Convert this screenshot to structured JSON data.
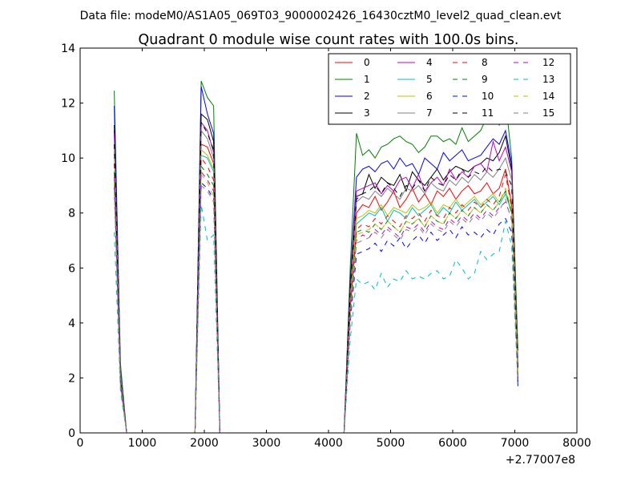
{
  "suptitle": "Data file: modeM0/AS1A05_069T03_9000002426_16430cztM0_level2_quad_clean.evt",
  "chart_data": {
    "type": "line",
    "title": "Quadrant 0 module wise count rates with 100.0s bins.",
    "xlabel": "",
    "ylabel": "",
    "x_offset_label": "+2.77007e8",
    "xlim": [
      0,
      8000
    ],
    "ylim": [
      0,
      14
    ],
    "xticks": [
      0,
      1000,
      2000,
      3000,
      4000,
      5000,
      6000,
      7000,
      8000
    ],
    "yticks": [
      0,
      2,
      4,
      6,
      8,
      10,
      12,
      14
    ],
    "grid": false,
    "legend_position": "top-right",
    "x": [
      550,
      650,
      750,
      850,
      950,
      1050,
      1150,
      1250,
      1350,
      1450,
      1550,
      1650,
      1750,
      1850,
      1950,
      2050,
      2150,
      2250,
      2350,
      2450,
      2550,
      2650,
      2750,
      2850,
      2950,
      3050,
      3150,
      3250,
      3350,
      3450,
      3550,
      3650,
      3750,
      3850,
      3950,
      4050,
      4150,
      4250,
      4350,
      4450,
      4550,
      4650,
      4750,
      4850,
      4950,
      5050,
      5150,
      5250,
      5350,
      5450,
      5550,
      5650,
      5750,
      5850,
      5950,
      6050,
      6150,
      6250,
      6350,
      6450,
      6550,
      6650,
      6750,
      6850,
      6950,
      7050
    ],
    "series": [
      {
        "name": "0",
        "color": "#ff0000",
        "dash": false,
        "values": [
          11.0,
          2.0,
          0,
          0,
          0,
          0,
          0,
          0,
          0,
          0,
          0,
          0,
          0,
          0,
          10.5,
          10.4,
          9.8,
          0,
          0,
          0,
          0,
          0,
          0,
          0,
          0,
          0,
          0,
          0,
          0,
          0,
          0,
          0,
          0,
          0,
          0,
          0,
          0,
          0,
          4.8,
          8.0,
          8.3,
          8.2,
          8.6,
          8.1,
          8.4,
          8.8,
          8.2,
          8.5,
          8.9,
          8.4,
          8.7,
          8.3,
          8.8,
          8.6,
          8.9,
          8.5,
          8.8,
          9.0,
          8.7,
          8.8,
          9.1,
          8.7,
          8.9,
          9.6,
          8.3,
          2.0
        ]
      },
      {
        "name": "1",
        "color": "#008000",
        "dash": false,
        "values": [
          12.45,
          2.5,
          0,
          0,
          0,
          0,
          0,
          0,
          0,
          0,
          0,
          0,
          0,
          0,
          12.8,
          12.2,
          11.9,
          0,
          0,
          0,
          0,
          0,
          0,
          0,
          0,
          0,
          0,
          0,
          0,
          0,
          0,
          0,
          0,
          0,
          0,
          0,
          0,
          0,
          6.0,
          10.9,
          10.1,
          10.3,
          10.0,
          10.4,
          10.5,
          10.7,
          10.8,
          10.6,
          10.5,
          10.2,
          10.4,
          10.8,
          10.8,
          10.6,
          10.7,
          10.5,
          11.1,
          10.6,
          10.8,
          11.0,
          11.5,
          11.7,
          11.2,
          12.1,
          10.0,
          3.0
        ]
      },
      {
        "name": "2",
        "color": "#0000ff",
        "dash": false,
        "values": [
          11.9,
          2.2,
          0,
          0,
          0,
          0,
          0,
          0,
          0,
          0,
          0,
          0,
          0,
          0,
          12.6,
          11.6,
          10.9,
          0,
          0,
          0,
          0,
          0,
          0,
          0,
          0,
          0,
          0,
          0,
          0,
          0,
          0,
          0,
          0,
          0,
          0,
          0,
          0,
          0,
          5.5,
          9.3,
          9.6,
          9.7,
          9.5,
          9.8,
          9.9,
          9.6,
          10.0,
          9.7,
          9.8,
          9.4,
          10.0,
          9.8,
          9.6,
          10.2,
          9.9,
          10.1,
          10.3,
          9.9,
          10.0,
          10.1,
          10.4,
          10.7,
          10.5,
          11.0,
          9.8,
          1.7
        ]
      },
      {
        "name": "3",
        "color": "#000000",
        "dash": false,
        "values": [
          11.2,
          2.0,
          0,
          0,
          0,
          0,
          0,
          0,
          0,
          0,
          0,
          0,
          0,
          0,
          11.6,
          11.4,
          10.6,
          0,
          0,
          0,
          0,
          0,
          0,
          0,
          0,
          0,
          0,
          0,
          0,
          0,
          0,
          0,
          0,
          0,
          0,
          0,
          0,
          0,
          5.4,
          8.6,
          8.7,
          9.4,
          8.9,
          9.3,
          9.1,
          9.0,
          9.4,
          8.8,
          9.5,
          9.2,
          9.0,
          9.3,
          9.6,
          9.2,
          9.5,
          9.7,
          9.6,
          9.5,
          9.7,
          9.8,
          10.0,
          9.9,
          10.2,
          10.8,
          9.6,
          2.5
        ]
      },
      {
        "name": "4",
        "color": "#bf00bf",
        "dash": false,
        "values": [
          10.9,
          2.1,
          0,
          0,
          0,
          0,
          0,
          0,
          0,
          0,
          0,
          0,
          0,
          0,
          11.3,
          11.0,
          10.2,
          0,
          0,
          0,
          0,
          0,
          0,
          0,
          0,
          0,
          0,
          0,
          0,
          0,
          0,
          0,
          0,
          0,
          0,
          0,
          0,
          0,
          5.2,
          8.8,
          8.9,
          9.0,
          9.1,
          8.7,
          9.0,
          8.8,
          9.2,
          9.3,
          8.9,
          9.4,
          8.8,
          9.1,
          9.3,
          9.0,
          9.6,
          9.2,
          9.5,
          9.3,
          9.7,
          9.8,
          9.5,
          10.6,
          9.9,
          10.4,
          9.5,
          2.3
        ]
      },
      {
        "name": "5",
        "color": "#00bfbf",
        "dash": false,
        "values": [
          10.2,
          1.9,
          0,
          0,
          0,
          0,
          0,
          0,
          0,
          0,
          0,
          0,
          0,
          0,
          10.1,
          10.0,
          9.5,
          0,
          0,
          0,
          0,
          0,
          0,
          0,
          0,
          0,
          0,
          0,
          0,
          0,
          0,
          0,
          0,
          0,
          0,
          0,
          0,
          0,
          4.6,
          7.6,
          7.8,
          8.0,
          7.9,
          8.2,
          7.7,
          8.1,
          8.0,
          7.8,
          8.2,
          7.9,
          8.1,
          8.3,
          7.9,
          8.2,
          8.0,
          8.4,
          8.1,
          8.3,
          8.5,
          8.2,
          8.4,
          8.6,
          8.3,
          8.7,
          8.0,
          2.1
        ]
      },
      {
        "name": "6",
        "color": "#bfbf00",
        "dash": false,
        "values": [
          10.3,
          2.0,
          0,
          0,
          0,
          0,
          0,
          0,
          0,
          0,
          0,
          0,
          0,
          0,
          10.3,
          10.1,
          9.6,
          0,
          0,
          0,
          0,
          0,
          0,
          0,
          0,
          0,
          0,
          0,
          0,
          0,
          0,
          0,
          0,
          0,
          0,
          0,
          0,
          0,
          4.7,
          7.8,
          7.9,
          8.1,
          8.0,
          8.3,
          7.9,
          8.2,
          8.1,
          8.0,
          8.3,
          8.1,
          8.2,
          8.4,
          8.0,
          8.3,
          8.2,
          8.5,
          8.2,
          8.4,
          8.6,
          8.3,
          8.5,
          8.7,
          8.4,
          8.8,
          8.1,
          2.2
        ]
      },
      {
        "name": "7",
        "color": "#808080",
        "dash": false,
        "values": [
          10.6,
          2.1,
          0,
          0,
          0,
          0,
          0,
          0,
          0,
          0,
          0,
          0,
          0,
          0,
          11.0,
          10.7,
          10.0,
          0,
          0,
          0,
          0,
          0,
          0,
          0,
          0,
          0,
          0,
          0,
          0,
          0,
          0,
          0,
          0,
          0,
          0,
          0,
          0,
          0,
          5.0,
          8.4,
          8.6,
          8.5,
          8.8,
          8.6,
          8.9,
          8.7,
          8.5,
          8.9,
          8.8,
          9.0,
          8.7,
          9.1,
          8.9,
          8.8,
          9.2,
          9.0,
          9.3,
          9.1,
          9.4,
          9.2,
          9.5,
          9.3,
          9.6,
          10.0,
          9.2,
          2.4
        ]
      },
      {
        "name": "8",
        "color": "#ff0000",
        "dash": true,
        "values": [
          9.8,
          1.9,
          0,
          0,
          0,
          0,
          0,
          0,
          0,
          0,
          0,
          0,
          0,
          0,
          10.0,
          9.7,
          9.2,
          0,
          0,
          0,
          0,
          0,
          0,
          0,
          0,
          0,
          0,
          0,
          0,
          0,
          0,
          0,
          0,
          0,
          0,
          0,
          0,
          0,
          4.5,
          7.4,
          7.6,
          7.5,
          7.8,
          7.6,
          7.9,
          7.7,
          7.5,
          7.9,
          7.8,
          8.0,
          7.7,
          8.1,
          7.9,
          7.8,
          8.2,
          8.0,
          8.3,
          8.1,
          8.4,
          8.2,
          8.5,
          8.3,
          8.6,
          9.4,
          8.2,
          2.0
        ]
      },
      {
        "name": "9",
        "color": "#008000",
        "dash": true,
        "values": [
          9.5,
          1.8,
          0,
          0,
          0,
          0,
          0,
          0,
          0,
          0,
          0,
          0,
          0,
          0,
          9.7,
          9.4,
          9.0,
          0,
          0,
          0,
          0,
          0,
          0,
          0,
          0,
          0,
          0,
          0,
          0,
          0,
          0,
          0,
          0,
          0,
          0,
          0,
          0,
          0,
          4.4,
          7.3,
          7.4,
          7.3,
          7.6,
          7.4,
          7.7,
          7.5,
          7.3,
          7.7,
          7.6,
          7.8,
          7.5,
          7.9,
          7.7,
          7.6,
          8.0,
          7.8,
          8.1,
          7.9,
          8.2,
          8.0,
          8.3,
          8.1,
          8.4,
          8.8,
          8.0,
          1.9
        ]
      },
      {
        "name": "10",
        "color": "#0000ff",
        "dash": true,
        "values": [
          9.0,
          1.7,
          0,
          0,
          0,
          0,
          0,
          0,
          0,
          0,
          0,
          0,
          0,
          0,
          9.1,
          8.9,
          8.5,
          0,
          0,
          0,
          0,
          0,
          0,
          0,
          0,
          0,
          0,
          0,
          0,
          0,
          0,
          0,
          0,
          0,
          0,
          0,
          0,
          0,
          4.0,
          6.5,
          6.6,
          6.7,
          6.9,
          6.6,
          7.0,
          6.8,
          7.1,
          6.7,
          7.0,
          7.2,
          6.9,
          7.3,
          7.0,
          7.2,
          7.4,
          7.1,
          7.5,
          7.2,
          7.3,
          7.1,
          7.4,
          7.2,
          7.6,
          7.8,
          7.3,
          1.8
        ]
      },
      {
        "name": "11",
        "color": "#000000",
        "dash": true,
        "values": [
          10.5,
          2.0,
          0,
          0,
          0,
          0,
          0,
          0,
          0,
          0,
          0,
          0,
          0,
          0,
          11.3,
          10.9,
          10.3,
          0,
          0,
          0,
          0,
          0,
          0,
          0,
          0,
          0,
          0,
          0,
          0,
          0,
          0,
          0,
          0,
          0,
          0,
          0,
          0,
          0,
          5.1,
          8.5,
          8.7,
          8.8,
          9.0,
          8.7,
          9.1,
          8.9,
          8.6,
          9.0,
          8.9,
          9.2,
          8.8,
          9.3,
          9.1,
          9.0,
          9.4,
          9.2,
          9.6,
          9.3,
          9.5,
          9.4,
          9.7,
          9.5,
          9.6,
          9.5,
          9.0,
          2.3
        ]
      },
      {
        "name": "12",
        "color": "#bf00bf",
        "dash": true,
        "values": [
          9.3,
          1.8,
          0,
          0,
          0,
          0,
          0,
          0,
          0,
          0,
          0,
          0,
          0,
          0,
          9.5,
          9.2,
          8.8,
          0,
          0,
          0,
          0,
          0,
          0,
          0,
          0,
          0,
          0,
          0,
          0,
          0,
          0,
          0,
          0,
          0,
          0,
          0,
          0,
          0,
          4.3,
          7.0,
          7.2,
          7.1,
          7.4,
          7.2,
          7.5,
          7.3,
          7.1,
          7.5,
          7.4,
          7.6,
          7.3,
          7.7,
          7.5,
          7.4,
          7.8,
          7.6,
          7.9,
          7.7,
          8.0,
          7.8,
          8.1,
          7.9,
          8.2,
          8.4,
          7.8,
          1.9
        ]
      },
      {
        "name": "13",
        "color": "#00bfbf",
        "dash": true,
        "values": [
          7.3,
          1.5,
          0,
          0,
          0,
          0,
          0,
          0,
          0,
          0,
          0,
          0,
          0,
          0,
          8.3,
          7.0,
          7.2,
          0,
          0,
          0,
          0,
          0,
          0,
          0,
          0,
          0,
          0,
          0,
          0,
          0,
          0,
          0,
          0,
          0,
          0,
          0,
          0,
          0,
          3.4,
          5.6,
          5.4,
          5.5,
          5.2,
          5.8,
          5.3,
          5.6,
          5.5,
          5.9,
          5.6,
          5.7,
          5.6,
          5.8,
          5.9,
          5.6,
          5.7,
          6.3,
          6.0,
          5.6,
          5.8,
          6.6,
          6.3,
          6.5,
          6.6,
          7.7,
          6.8,
          1.8
        ]
      },
      {
        "name": "14",
        "color": "#bfbf00",
        "dash": true,
        "values": [
          9.1,
          1.8,
          0,
          0,
          0,
          0,
          0,
          0,
          0,
          0,
          0,
          0,
          0,
          0,
          9.4,
          9.1,
          8.6,
          0,
          0,
          0,
          0,
          0,
          0,
          0,
          0,
          0,
          0,
          0,
          0,
          0,
          0,
          0,
          0,
          0,
          0,
          0,
          0,
          0,
          4.2,
          7.2,
          7.3,
          7.4,
          7.6,
          7.4,
          7.7,
          7.5,
          7.3,
          7.7,
          7.6,
          7.8,
          7.5,
          7.9,
          7.7,
          7.6,
          8.0,
          7.8,
          8.1,
          7.9,
          8.2,
          8.0,
          8.3,
          8.1,
          8.4,
          8.9,
          8.1,
          2.0
        ]
      },
      {
        "name": "15",
        "color": "#808080",
        "dash": true,
        "values": [
          8.8,
          1.7,
          0,
          0,
          0,
          0,
          0,
          0,
          0,
          0,
          0,
          0,
          0,
          0,
          9.0,
          8.8,
          8.4,
          0,
          0,
          0,
          0,
          0,
          0,
          0,
          0,
          0,
          0,
          0,
          0,
          0,
          0,
          0,
          0,
          0,
          0,
          0,
          0,
          0,
          4.1,
          6.9,
          7.0,
          7.1,
          7.3,
          7.1,
          7.4,
          7.2,
          7.0,
          7.4,
          7.3,
          7.5,
          7.2,
          7.6,
          7.4,
          7.3,
          7.7,
          7.5,
          7.8,
          7.6,
          7.9,
          7.7,
          8.0,
          7.8,
          8.1,
          8.5,
          7.7,
          1.9
        ]
      }
    ]
  }
}
